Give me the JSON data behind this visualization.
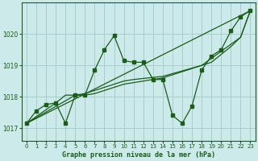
{
  "title": "Graphe pression niveau de la mer (hPa)",
  "bg_color": "#cceaea",
  "grid_color": "#aacccc",
  "line_color": "#1a5c1a",
  "xlim": [
    -0.5,
    23.5
  ],
  "ylim": [
    1016.6,
    1021.0
  ],
  "yticks": [
    1017,
    1018,
    1019,
    1020
  ],
  "xticks": [
    0,
    1,
    2,
    3,
    4,
    5,
    6,
    7,
    8,
    9,
    10,
    11,
    12,
    13,
    14,
    15,
    16,
    17,
    18,
    19,
    20,
    21,
    22,
    23
  ],
  "series_main": [
    [
      0,
      1017.15
    ],
    [
      1,
      1017.55
    ],
    [
      2,
      1017.75
    ],
    [
      3,
      1017.8
    ],
    [
      4,
      1017.15
    ],
    [
      5,
      1018.05
    ],
    [
      6,
      1018.05
    ],
    [
      7,
      1018.85
    ],
    [
      8,
      1019.5
    ],
    [
      9,
      1019.95
    ],
    [
      10,
      1019.15
    ],
    [
      11,
      1019.1
    ],
    [
      12,
      1019.1
    ],
    [
      13,
      1018.55
    ],
    [
      14,
      1018.55
    ],
    [
      15,
      1017.4
    ],
    [
      16,
      1017.15
    ],
    [
      17,
      1017.7
    ],
    [
      18,
      1018.85
    ],
    [
      19,
      1019.3
    ],
    [
      20,
      1019.5
    ],
    [
      21,
      1020.1
    ],
    [
      22,
      1020.55
    ],
    [
      23,
      1020.75
    ]
  ],
  "series_line1": [
    [
      0,
      1017.15
    ],
    [
      23,
      1020.75
    ]
  ],
  "series_line2": [
    [
      0,
      1017.15
    ],
    [
      5,
      1018.05
    ],
    [
      6,
      1018.05
    ],
    [
      7,
      1018.1
    ],
    [
      10,
      1018.4
    ],
    [
      11,
      1018.45
    ],
    [
      12,
      1018.5
    ],
    [
      13,
      1018.55
    ],
    [
      14,
      1018.6
    ],
    [
      18,
      1019.0
    ],
    [
      19,
      1019.1
    ],
    [
      20,
      1019.35
    ],
    [
      21,
      1019.6
    ],
    [
      22,
      1019.9
    ],
    [
      23,
      1020.75
    ]
  ],
  "series_line3": [
    [
      0,
      1017.15
    ],
    [
      3,
      1017.8
    ],
    [
      4,
      1018.05
    ],
    [
      5,
      1018.05
    ],
    [
      6,
      1018.1
    ],
    [
      10,
      1018.5
    ],
    [
      11,
      1018.55
    ],
    [
      14,
      1018.65
    ],
    [
      18,
      1019.0
    ],
    [
      22,
      1019.9
    ],
    [
      23,
      1020.75
    ]
  ]
}
